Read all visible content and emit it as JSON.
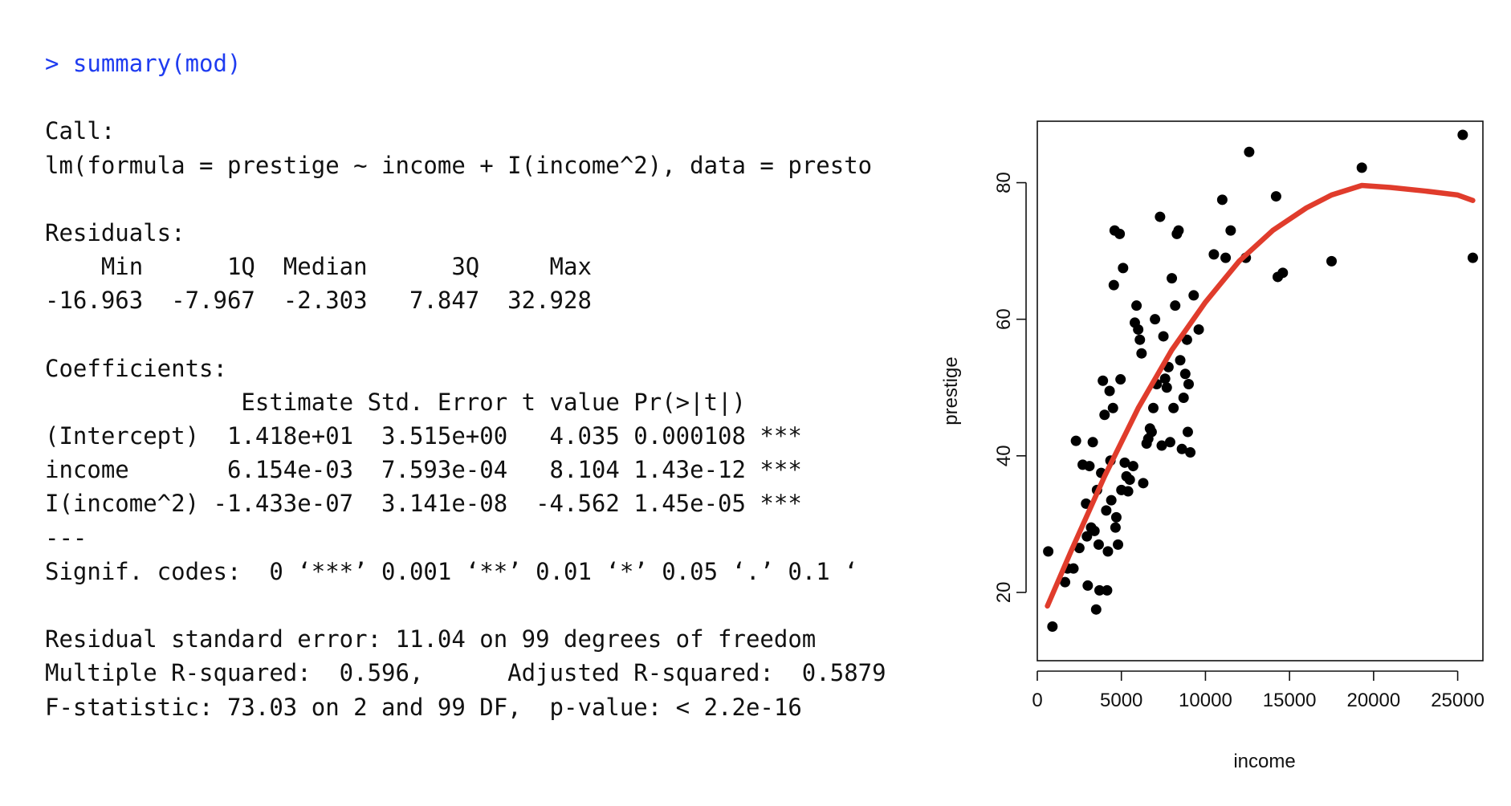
{
  "console": {
    "lines": [
      {
        "kind": "cmd",
        "text": "> summary(mod)"
      },
      {
        "kind": "out",
        "text": ""
      },
      {
        "kind": "out",
        "text": "Call:"
      },
      {
        "kind": "out",
        "text": "lm(formula = prestige ~ income + I(income^2), data = presto"
      },
      {
        "kind": "out",
        "text": ""
      },
      {
        "kind": "out",
        "text": "Residuals:"
      },
      {
        "kind": "out",
        "text": "    Min      1Q  Median      3Q     Max"
      },
      {
        "kind": "out",
        "text": "-16.963  -7.967  -2.303   7.847  32.928"
      },
      {
        "kind": "out",
        "text": ""
      },
      {
        "kind": "out",
        "text": "Coefficients:"
      },
      {
        "kind": "out",
        "text": "              Estimate Std. Error t value Pr(>|t|)"
      },
      {
        "kind": "out",
        "text": "(Intercept)  1.418e+01  3.515e+00   4.035 0.000108 ***"
      },
      {
        "kind": "out",
        "text": "income       6.154e-03  7.593e-04   8.104 1.43e-12 ***"
      },
      {
        "kind": "out",
        "text": "I(income^2) -1.433e-07  3.141e-08  -4.562 1.45e-05 ***"
      },
      {
        "kind": "out",
        "text": "---"
      },
      {
        "kind": "out",
        "text": "Signif. codes:  0 ‘***’ 0.001 ‘**’ 0.01 ‘*’ 0.05 ‘.’ 0.1 ‘"
      },
      {
        "kind": "out",
        "text": ""
      },
      {
        "kind": "out",
        "text": "Residual standard error: 11.04 on 99 degrees of freedom"
      },
      {
        "kind": "out",
        "text": "Multiple R-squared:  0.596,\tAdjusted R-squared:  0.5879"
      },
      {
        "kind": "out",
        "text": "F-statistic: 73.03 on 2 and 99 DF,  p-value: < 2.2e-16"
      }
    ]
  },
  "chart_data": {
    "type": "scatter",
    "title": "",
    "xlabel": "income",
    "ylabel": "prestige",
    "xlim": [
      0,
      26500
    ],
    "ylim": [
      10,
      89
    ],
    "xticks": [
      0,
      5000,
      10000,
      15000,
      20000,
      25000
    ],
    "yticks": [
      20,
      40,
      60,
      80
    ],
    "grid": false,
    "legend": "none",
    "colors": {
      "points": "#000000",
      "fit_line": "#e03c2c"
    },
    "series": [
      {
        "type": "scatter",
        "points": [
          [
            650,
            26
          ],
          [
            900,
            15
          ],
          [
            1650,
            21.5
          ],
          [
            1800,
            23.5
          ],
          [
            2150,
            23.5
          ],
          [
            2300,
            42.2
          ],
          [
            2500,
            26.5
          ],
          [
            2700,
            38.7
          ],
          [
            2900,
            33
          ],
          [
            2950,
            28.2
          ],
          [
            3000,
            21
          ],
          [
            3100,
            38.5
          ],
          [
            3200,
            29.5
          ],
          [
            3300,
            42
          ],
          [
            3400,
            29
          ],
          [
            3500,
            17.5
          ],
          [
            3550,
            35
          ],
          [
            3650,
            27
          ],
          [
            3700,
            20.3
          ],
          [
            3800,
            37.5
          ],
          [
            3900,
            51
          ],
          [
            4000,
            46
          ],
          [
            4100,
            32
          ],
          [
            4150,
            20.3
          ],
          [
            4200,
            26
          ],
          [
            4300,
            49.5
          ],
          [
            4350,
            39.3
          ],
          [
            4400,
            33.5
          ],
          [
            4500,
            47
          ],
          [
            4550,
            65
          ],
          [
            4600,
            73
          ],
          [
            4650,
            29.5
          ],
          [
            4700,
            31
          ],
          [
            4800,
            27
          ],
          [
            4900,
            72.5
          ],
          [
            4950,
            51.2
          ],
          [
            5000,
            35
          ],
          [
            5100,
            67.5
          ],
          [
            5200,
            39
          ],
          [
            5300,
            37
          ],
          [
            5400,
            34.8
          ],
          [
            5500,
            36.5
          ],
          [
            5700,
            38.5
          ],
          [
            5800,
            59.5
          ],
          [
            5900,
            62
          ],
          [
            6000,
            58.5
          ],
          [
            6100,
            57
          ],
          [
            6200,
            55
          ],
          [
            6300,
            36
          ],
          [
            6500,
            41.8
          ],
          [
            6600,
            42.5
          ],
          [
            6700,
            44
          ],
          [
            6800,
            43.5
          ],
          [
            6900,
            47
          ],
          [
            7000,
            60
          ],
          [
            7100,
            50.5
          ],
          [
            7300,
            75
          ],
          [
            7400,
            41.5
          ],
          [
            7500,
            57.5
          ],
          [
            7600,
            51.3
          ],
          [
            7700,
            50
          ],
          [
            7800,
            53
          ],
          [
            7900,
            42
          ],
          [
            8000,
            66
          ],
          [
            8100,
            47
          ],
          [
            8200,
            62
          ],
          [
            8300,
            72.5
          ],
          [
            8400,
            73
          ],
          [
            8500,
            54
          ],
          [
            8600,
            41
          ],
          [
            8700,
            48.5
          ],
          [
            8800,
            52
          ],
          [
            8900,
            57
          ],
          [
            8950,
            43.5
          ],
          [
            9000,
            50.5
          ],
          [
            9100,
            40.5
          ],
          [
            9300,
            63.5
          ],
          [
            9600,
            58.5
          ],
          [
            10500,
            69.5
          ],
          [
            11000,
            77.5
          ],
          [
            11200,
            69
          ],
          [
            11500,
            73
          ],
          [
            12400,
            69
          ],
          [
            12600,
            84.5
          ],
          [
            14200,
            78
          ],
          [
            14300,
            66.2
          ],
          [
            14600,
            66.8
          ],
          [
            17500,
            68.5
          ],
          [
            19300,
            82.2
          ],
          [
            25300,
            87
          ],
          [
            25900,
            69
          ]
        ]
      },
      {
        "type": "line",
        "name": "",
        "points": [
          [
            600,
            18
          ],
          [
            2000,
            26
          ],
          [
            4000,
            37
          ],
          [
            6000,
            47
          ],
          [
            8000,
            55.5
          ],
          [
            10000,
            62.5
          ],
          [
            12000,
            68.5
          ],
          [
            14000,
            73
          ],
          [
            16000,
            76.3
          ],
          [
            17500,
            78.2
          ],
          [
            19300,
            79.6
          ],
          [
            21000,
            79.3
          ],
          [
            23000,
            78.8
          ],
          [
            25000,
            78.2
          ],
          [
            25900,
            77.4
          ]
        ]
      }
    ]
  }
}
